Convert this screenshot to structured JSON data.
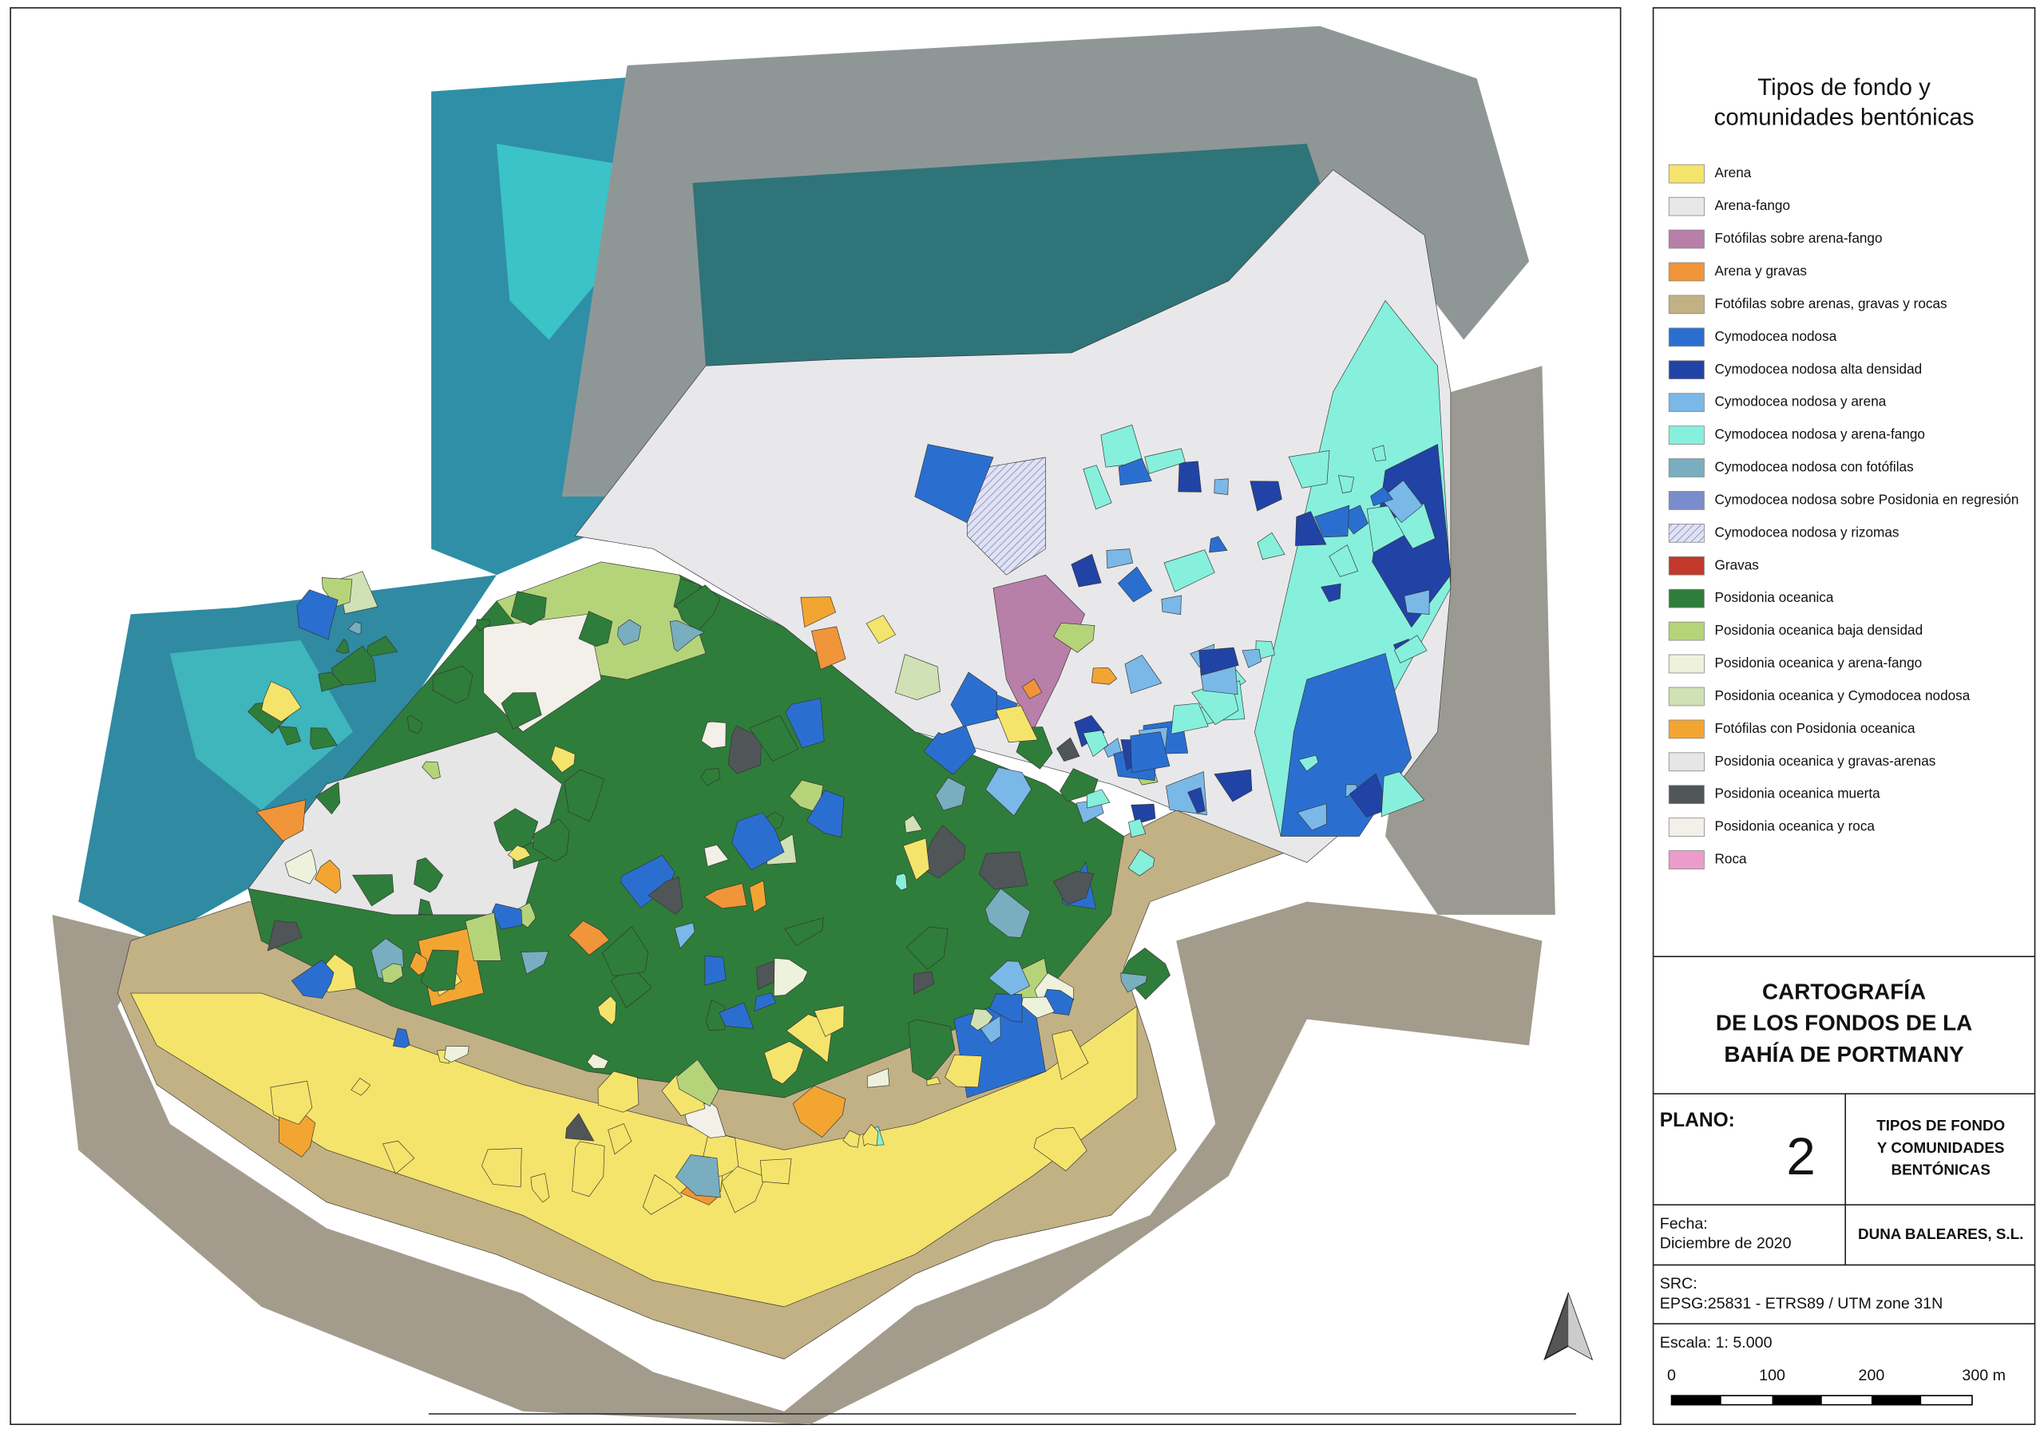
{
  "legend": {
    "title": [
      "Tipos de fondo y",
      "comunidades bentónicas"
    ],
    "items": [
      {
        "label": "Arena",
        "color": "#f5e46b"
      },
      {
        "label": "Arena-fango",
        "color": "#e8e8ea"
      },
      {
        "label": "Fotófilas sobre arena-fango",
        "color": "#b87fa8"
      },
      {
        "label": "Arena y gravas",
        "color": "#f0953a"
      },
      {
        "label": "Fotófilas sobre arenas, gravas y rocas",
        "color": "#c2b184"
      },
      {
        "label": "Cymodocea nodosa",
        "color": "#2a6fd0"
      },
      {
        "label": "Cymodocea nodosa alta densidad",
        "color": "#2143a6"
      },
      {
        "label": "Cymodocea nodosa y arena",
        "color": "#7ab8e8"
      },
      {
        "label": "Cymodocea nodosa y arena-fango",
        "color": "#86f0dc"
      },
      {
        "label": "Cymodocea nodosa con fotófilas",
        "color": "#78aebf"
      },
      {
        "label": "Cymodocea nodosa sobre Posidonia en regresión",
        "color": "#7b8ccc"
      },
      {
        "label": "Cymodocea nodosa y rizomas",
        "color": "#c8cce8",
        "hatched": true
      },
      {
        "label": "Gravas",
        "color": "#c0392b"
      },
      {
        "label": "Posidonia oceanica",
        "color": "#2f7d3a"
      },
      {
        "label": "Posidonia oceanica baja densidad",
        "color": "#b5d47a"
      },
      {
        "label": "Posidonia oceanica y arena-fango",
        "color": "#eef2dc"
      },
      {
        "label": "Posidonia oceanica y Cymodocea nodosa",
        "color": "#d0e2b5"
      },
      {
        "label": "Fotófilas con Posidonia oceanica",
        "color": "#f3a532"
      },
      {
        "label": "Posidonia oceanica y gravas-arenas",
        "color": "#e6e6e6"
      },
      {
        "label": "Posidonia oceanica muerta",
        "color": "#505558"
      },
      {
        "label": "Posidonia oceanica y roca",
        "color": "#f2f0e8"
      },
      {
        "label": "Roca",
        "color": "#ec9ccb"
      }
    ]
  },
  "title_block": {
    "title": [
      "CARTOGRAFÍA",
      "DE LOS FONDOS DE LA",
      "BAHÍA DE PORTMANY"
    ],
    "plano_label": "PLANO:",
    "plano_number": "2",
    "plano_title": [
      "TIPOS DE FONDO",
      "Y COMUNIDADES",
      "BENTÓNICAS"
    ],
    "date_label": "Fecha:",
    "date": "Diciembre de 2020",
    "company": "DUNA BALEARES, S.L.",
    "src_label": "SRC:",
    "src": "EPSG:25831 - ETRS89 / UTM zone 31N",
    "scale": "Escala: 1: 5.000",
    "scale_bar_labels": [
      "0",
      "100",
      "200",
      "300 m"
    ]
  }
}
